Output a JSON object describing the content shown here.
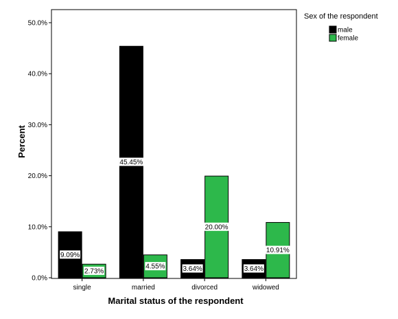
{
  "chart_data": {
    "type": "bar",
    "categories": [
      "single",
      "married",
      "divorced",
      "widowed"
    ],
    "series": [
      {
        "name": "male",
        "color": "#000000",
        "values": [
          9.09,
          45.45,
          3.64,
          3.64
        ],
        "labels": [
          "9.09%",
          "45.45%",
          "3.64%",
          "3.64%"
        ]
      },
      {
        "name": "female",
        "color": "#2db84b",
        "values": [
          2.73,
          4.55,
          20.0,
          10.91
        ],
        "labels": [
          "2.73%",
          "4.55%",
          "20.00%",
          "10.91%"
        ]
      }
    ],
    "xlabel": "Marital status of the respondent",
    "ylabel": "Percent",
    "ylim": [
      0,
      50
    ],
    "yticks": [
      "0.0%",
      "10.0%",
      "20.0%",
      "30.0%",
      "40.0%",
      "50.0%"
    ],
    "grid": false,
    "legend": {
      "title": "Sex of the respondent",
      "placement": "right"
    }
  }
}
